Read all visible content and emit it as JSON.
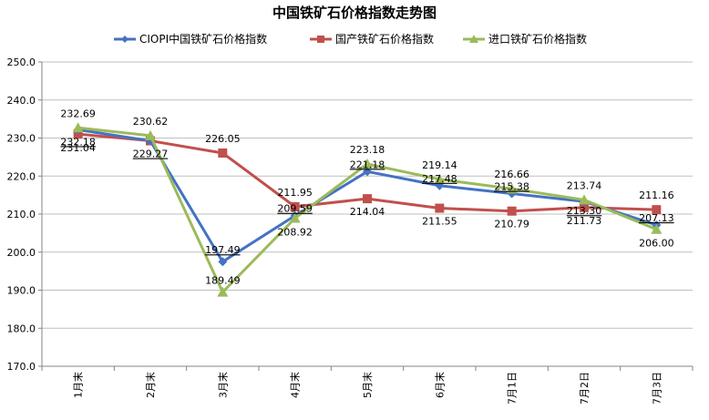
{
  "chart_data": {
    "type": "line",
    "title": "中国铁矿石价格指数走势图",
    "categories": [
      "1月末",
      "2月末",
      "3月末",
      "4月末",
      "5月末",
      "6月末",
      "7月1日",
      "7月2日",
      "7月3日"
    ],
    "ylim": [
      170,
      250
    ],
    "yticks": [
      "170.0",
      "180.0",
      "190.0",
      "200.0",
      "210.0",
      "220.0",
      "230.0",
      "240.0",
      "250.0"
    ],
    "grid": "horizontal",
    "legend": "top",
    "series": [
      {
        "name": "CIOPI中国铁矿石价格指数",
        "color": "#4472C4",
        "marker": "diamond",
        "values": [
          232.18,
          229.27,
          197.49,
          209.59,
          221.18,
          217.48,
          215.38,
          213.3,
          207.13
        ],
        "labels": [
          "232.18",
          "229.27",
          "197.49",
          "209.59",
          "221.18",
          "217.48",
          "215.38",
          "213.30",
          "207.13"
        ]
      },
      {
        "name": "国产铁矿石价格指数",
        "color": "#C0504D",
        "marker": "square",
        "values": [
          231.04,
          229.27,
          226.05,
          211.95,
          214.04,
          211.55,
          210.79,
          211.73,
          211.16
        ],
        "labels": [
          "231.04",
          "",
          "226.05",
          "211.95",
          "214.04",
          "211.55",
          "210.79",
          "211.73",
          "211.16"
        ]
      },
      {
        "name": "进口铁矿石价格指数",
        "color": "#9BBB59",
        "marker": "triangle",
        "values": [
          232.69,
          230.62,
          189.49,
          208.92,
          223.18,
          219.14,
          216.66,
          213.74,
          206.0
        ],
        "labels": [
          "232.69",
          "230.62",
          "189.49",
          "208.92",
          "223.18",
          "219.14",
          "216.66",
          "213.74",
          "206.00"
        ]
      }
    ]
  }
}
